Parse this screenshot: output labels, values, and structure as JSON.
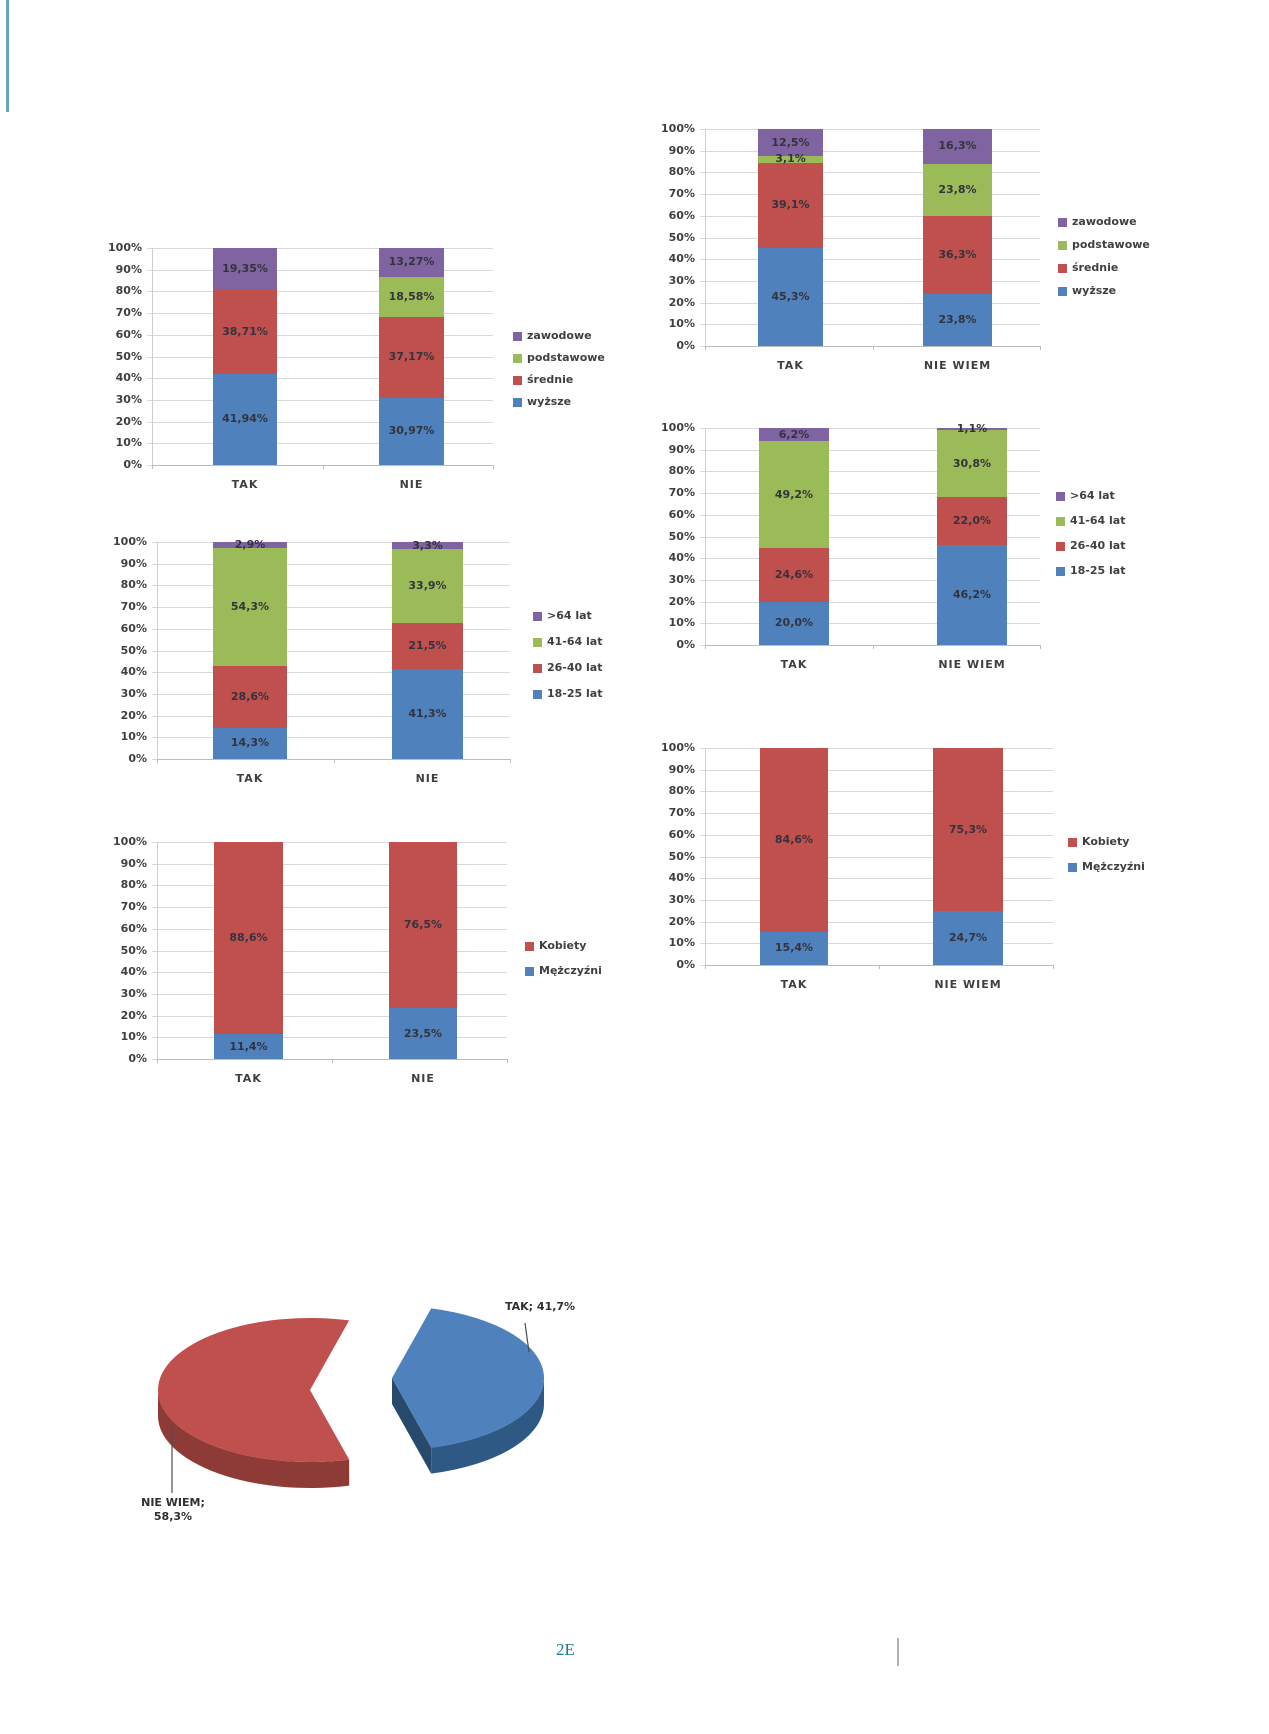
{
  "colors": {
    "blue": "#4F81BD",
    "red": "#C0504D",
    "green": "#9BBB59",
    "purple": "#8064A2",
    "grid": "#D9D9D9",
    "pie_blue_side": "#2E5984",
    "pie_blue_cut": "#27496B",
    "pie_red_side": "#8E3B38"
  },
  "y_axis_ticks": [
    "100%",
    "90%",
    "80%",
    "70%",
    "60%",
    "50%",
    "40%",
    "30%",
    "20%",
    "10%",
    "0%"
  ],
  "chart_data": [
    {
      "type": "stacked-bar-100",
      "categories": [
        "TAK",
        "NIE"
      ],
      "series": [
        {
          "name": "wyższe",
          "color": "blue",
          "values": [
            41.94,
            30.97
          ],
          "display": [
            "41,94%",
            "30,97%"
          ]
        },
        {
          "name": "średnie",
          "color": "red",
          "values": [
            38.71,
            37.17
          ],
          "display": [
            "38,71%",
            "37,17%"
          ]
        },
        {
          "name": "podstawowe",
          "color": "green",
          "values": [
            0,
            18.58
          ],
          "display": [
            null,
            "18,58%"
          ]
        },
        {
          "name": "zawodowe",
          "color": "purple",
          "values": [
            19.35,
            13.27
          ],
          "display": [
            "19,35%",
            "13,27%"
          ]
        }
      ],
      "legend": [
        {
          "label": "zawodowe",
          "color": "purple"
        },
        {
          "label": "podstawowe",
          "color": "green"
        },
        {
          "label": "średnie",
          "color": "red"
        },
        {
          "label": "wyższe",
          "color": "blue"
        }
      ],
      "ylim": [
        0,
        100
      ]
    },
    {
      "type": "stacked-bar-100",
      "categories": [
        "TAK",
        "NIE WIEM"
      ],
      "series": [
        {
          "name": "wyższe",
          "color": "blue",
          "values": [
            45.3,
            23.8
          ],
          "display": [
            "45,3%",
            "23,8%"
          ]
        },
        {
          "name": "średnie",
          "color": "red",
          "values": [
            39.1,
            36.3
          ],
          "display": [
            "39,1%",
            "36,3%"
          ]
        },
        {
          "name": "podstawowe",
          "color": "green",
          "values": [
            3.1,
            23.8
          ],
          "display": [
            "3,1%",
            "23,8%"
          ]
        },
        {
          "name": "zawodowe",
          "color": "purple",
          "values": [
            12.5,
            16.3
          ],
          "display": [
            "12,5%",
            "16,3%"
          ]
        }
      ],
      "legend": [
        {
          "label": "zawodowe",
          "color": "purple"
        },
        {
          "label": "podstawowe",
          "color": "green"
        },
        {
          "label": "średnie",
          "color": "red"
        },
        {
          "label": "wyższe",
          "color": "blue"
        }
      ],
      "ylim": [
        0,
        100
      ]
    },
    {
      "type": "stacked-bar-100",
      "categories": [
        "TAK",
        "NIE"
      ],
      "series": [
        {
          "name": "18-25 lat",
          "color": "blue",
          "values": [
            14.3,
            41.3
          ],
          "display": [
            "14,3%",
            "41,3%"
          ]
        },
        {
          "name": "26-40 lat",
          "color": "red",
          "values": [
            28.6,
            21.5
          ],
          "display": [
            "28,6%",
            "21,5%"
          ]
        },
        {
          "name": "41-64 lat",
          "color": "green",
          "values": [
            54.3,
            33.9
          ],
          "display": [
            "54,3%",
            "33,9%"
          ]
        },
        {
          "name": ">64 lat",
          "color": "purple",
          "values": [
            2.9,
            3.3
          ],
          "display": [
            "2,9%",
            "3,3%"
          ]
        }
      ],
      "legend": [
        {
          "label": ">64 lat",
          "color": "purple"
        },
        {
          "label": "41-64 lat",
          "color": "green"
        },
        {
          "label": "26-40 lat",
          "color": "red"
        },
        {
          "label": "18-25 lat",
          "color": "blue"
        }
      ],
      "ylim": [
        0,
        100
      ]
    },
    {
      "type": "stacked-bar-100",
      "categories": [
        "TAK",
        "NIE WIEM"
      ],
      "series": [
        {
          "name": "18-25 lat",
          "color": "blue",
          "values": [
            20.0,
            46.2
          ],
          "display": [
            "20,0%",
            "46,2%"
          ]
        },
        {
          "name": "26-40 lat",
          "color": "red",
          "values": [
            24.6,
            22.0
          ],
          "display": [
            "24,6%",
            "22,0%"
          ]
        },
        {
          "name": "41-64 lat",
          "color": "green",
          "values": [
            49.2,
            30.8
          ],
          "display": [
            "49,2%",
            "30,8%"
          ]
        },
        {
          "name": ">64 lat",
          "color": "purple",
          "values": [
            6.2,
            1.1
          ],
          "display": [
            "6,2%",
            "1,1%"
          ]
        }
      ],
      "legend": [
        {
          "label": ">64 lat",
          "color": "purple"
        },
        {
          "label": "41-64 lat",
          "color": "green"
        },
        {
          "label": "26-40 lat",
          "color": "red"
        },
        {
          "label": "18-25 lat",
          "color": "blue"
        }
      ],
      "ylim": [
        0,
        100
      ]
    },
    {
      "type": "stacked-bar-100",
      "categories": [
        "TAK",
        "NIE"
      ],
      "series": [
        {
          "name": "Mężczyźni",
          "color": "blue",
          "values": [
            11.4,
            23.5
          ],
          "display": [
            "11,4%",
            "23,5%"
          ]
        },
        {
          "name": "Kobiety",
          "color": "red",
          "values": [
            88.6,
            76.5
          ],
          "display": [
            "88,6%",
            "76,5%"
          ]
        }
      ],
      "legend": [
        {
          "label": "Kobiety",
          "color": "red"
        },
        {
          "label": "Mężczyźni",
          "color": "blue"
        }
      ],
      "ylim": [
        0,
        100
      ]
    },
    {
      "type": "stacked-bar-100",
      "categories": [
        "TAK",
        "NIE WIEM"
      ],
      "series": [
        {
          "name": "Mężczyźni",
          "color": "blue",
          "values": [
            15.4,
            24.7
          ],
          "display": [
            "15,4%",
            "24,7%"
          ]
        },
        {
          "name": "Kobiety",
          "color": "red",
          "values": [
            84.6,
            75.3
          ],
          "display": [
            "84,6%",
            "75,3%"
          ]
        }
      ],
      "legend": [
        {
          "label": "Kobiety",
          "color": "red"
        },
        {
          "label": "Mężczyźni",
          "color": "blue"
        }
      ],
      "ylim": [
        0,
        100
      ]
    },
    {
      "type": "pie",
      "slices": [
        {
          "label": "TAK",
          "value": 41.7,
          "color": "blue",
          "display": "TAK; 41,7%"
        },
        {
          "label": "NIE WIEM",
          "value": 58.3,
          "color": "red",
          "display_line1": "NIE WIEM;",
          "display_line2": "58,3%"
        }
      ]
    }
  ],
  "footer": {
    "page_mark": "2E"
  }
}
